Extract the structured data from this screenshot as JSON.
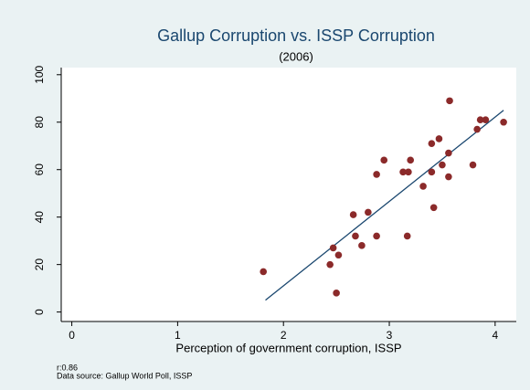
{
  "chart_data": {
    "type": "scatter",
    "title": "Gallup Corruption vs. ISSP Corruption",
    "subtitle": "(2006)",
    "x_label": "Perception of government corruption, ISSP",
    "notes": [
      "r:0.86",
      "Data source:  Gallup World Poll, ISSP"
    ],
    "series": [
      {
        "color": "#8b2a2a",
        "x": [
          1.81,
          2.44,
          2.47,
          2.52,
          2.5,
          2.66,
          2.68,
          2.74,
          2.8,
          2.88,
          2.88,
          2.95,
          3.13,
          3.18,
          3.17,
          3.2,
          3.32,
          3.4,
          3.4,
          3.42,
          3.47,
          3.5,
          3.56,
          3.56,
          3.57,
          3.79,
          3.83,
          3.86,
          3.91,
          4.08
        ],
        "values": [
          17,
          20,
          27,
          24,
          8,
          41,
          32,
          28,
          42,
          32,
          58,
          64,
          59,
          59,
          32,
          64,
          53,
          59,
          71,
          44,
          73,
          62,
          67,
          57,
          89,
          62,
          77,
          81,
          81,
          80
        ]
      }
    ],
    "fit": {
      "color": "#1a476f",
      "x": [
        1.83,
        4.08
      ],
      "values": [
        5,
        85
      ]
    },
    "xlim": [
      -0.1,
      4.2
    ],
    "ylim": [
      -4,
      103
    ],
    "xticks": [
      0,
      1,
      2,
      3,
      4
    ],
    "yticks": [
      0,
      20,
      40,
      60,
      80,
      100
    ]
  }
}
